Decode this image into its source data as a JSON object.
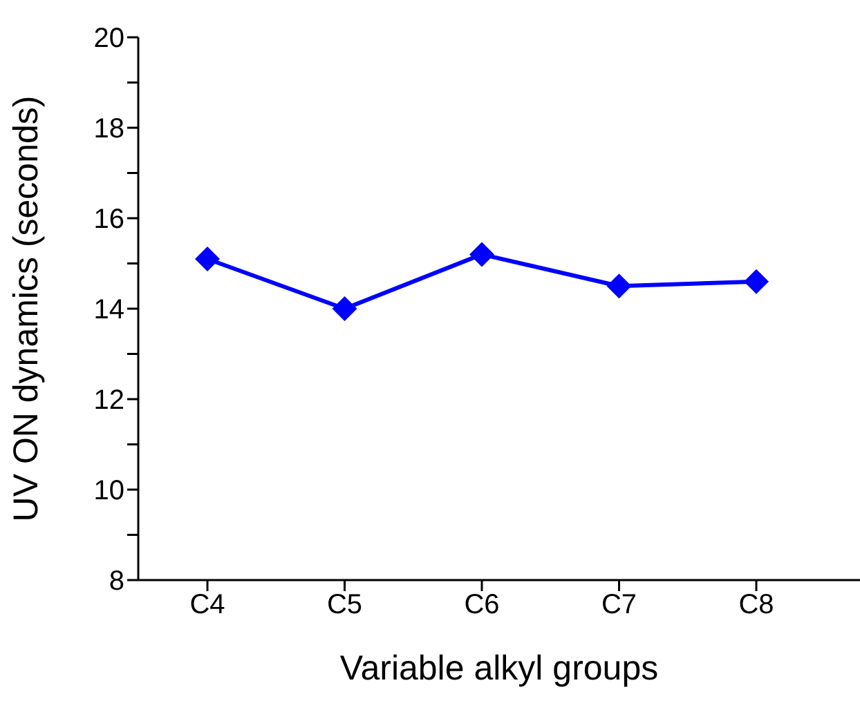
{
  "chart_data": {
    "type": "line",
    "xlabel": "Variable alkyl groups",
    "ylabel": "UV ON dynamics (seconds)",
    "categories": [
      "C4",
      "C5",
      "C6",
      "C7",
      "C8"
    ],
    "series": [
      {
        "color": "#0000ff",
        "values": [
          15.1,
          14.0,
          15.2,
          14.5,
          14.6
        ]
      }
    ],
    "ylim": [
      8,
      20
    ],
    "yticks": [
      8,
      {
        "value": 9,
        "label": null
      },
      10,
      {
        "value": 11,
        "label": null
      },
      12,
      {
        "value": 13,
        "label": null
      },
      14,
      {
        "value": 15,
        "label": null
      },
      16,
      {
        "value": 17,
        "label": null
      },
      18,
      {
        "value": 19,
        "label": null
      },
      20
    ],
    "grid": false,
    "legend": false,
    "marker": "diamond",
    "line_style": "solid"
  }
}
